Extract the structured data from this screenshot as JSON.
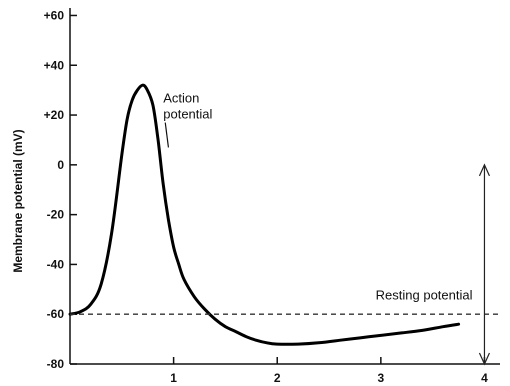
{
  "chart_data": {
    "type": "line",
    "title": "",
    "xlabel": "",
    "ylabel": "Membrane potential (mV)",
    "xlim": [
      0,
      4.15
    ],
    "ylim": [
      -80,
      63
    ],
    "x_ticks": [
      1,
      2,
      3,
      4
    ],
    "x_tick_labels": [
      "1",
      "2",
      "3",
      "4"
    ],
    "y_ticks": [
      60,
      40,
      20,
      0,
      -20,
      -40,
      -60,
      -80
    ],
    "y_tick_labels": [
      "+60",
      "+40",
      "+20",
      "0",
      "-20",
      "-40",
      "-60",
      "-80"
    ],
    "grid": false,
    "series": [
      {
        "name": "",
        "style": "solid",
        "x": [
          0,
          0.1,
          0.2,
          0.3,
          0.4,
          0.5,
          0.55,
          0.6,
          0.65,
          0.7,
          0.74,
          0.8,
          0.85,
          0.9,
          0.95,
          1.0,
          1.05,
          1.1,
          1.2,
          1.3,
          1.4,
          1.5,
          1.6,
          1.7,
          1.8,
          1.9,
          2.0,
          2.2,
          2.4,
          2.6,
          2.8,
          3.0,
          3.2,
          3.4,
          3.6,
          3.75
        ],
        "y": [
          -60,
          -59,
          -56,
          -48,
          -28,
          4,
          18,
          26,
          30,
          32,
          30.5,
          24,
          10,
          -8,
          -22,
          -33,
          -40,
          -46,
          -53,
          -58,
          -62,
          -65,
          -67,
          -69,
          -70.5,
          -71.5,
          -72,
          -72,
          -71.5,
          -70.5,
          -69.5,
          -68.5,
          -67.5,
          -66.5,
          -65,
          -64
        ]
      },
      {
        "name": "",
        "style": "dashed",
        "x": [
          0,
          4.15
        ],
        "y": [
          -60,
          -60
        ]
      }
    ],
    "annotations": [
      {
        "text_lines": [
          "Action",
          "potential"
        ],
        "x": 0.9,
        "y": 25,
        "pointer_to": [
          0.95,
          7
        ]
      },
      {
        "text": "Resting potential",
        "x": 2.95,
        "y": -54
      },
      {
        "type": "double-arrow",
        "x": 4.0,
        "from_y": 0,
        "to_y": -80
      }
    ]
  }
}
